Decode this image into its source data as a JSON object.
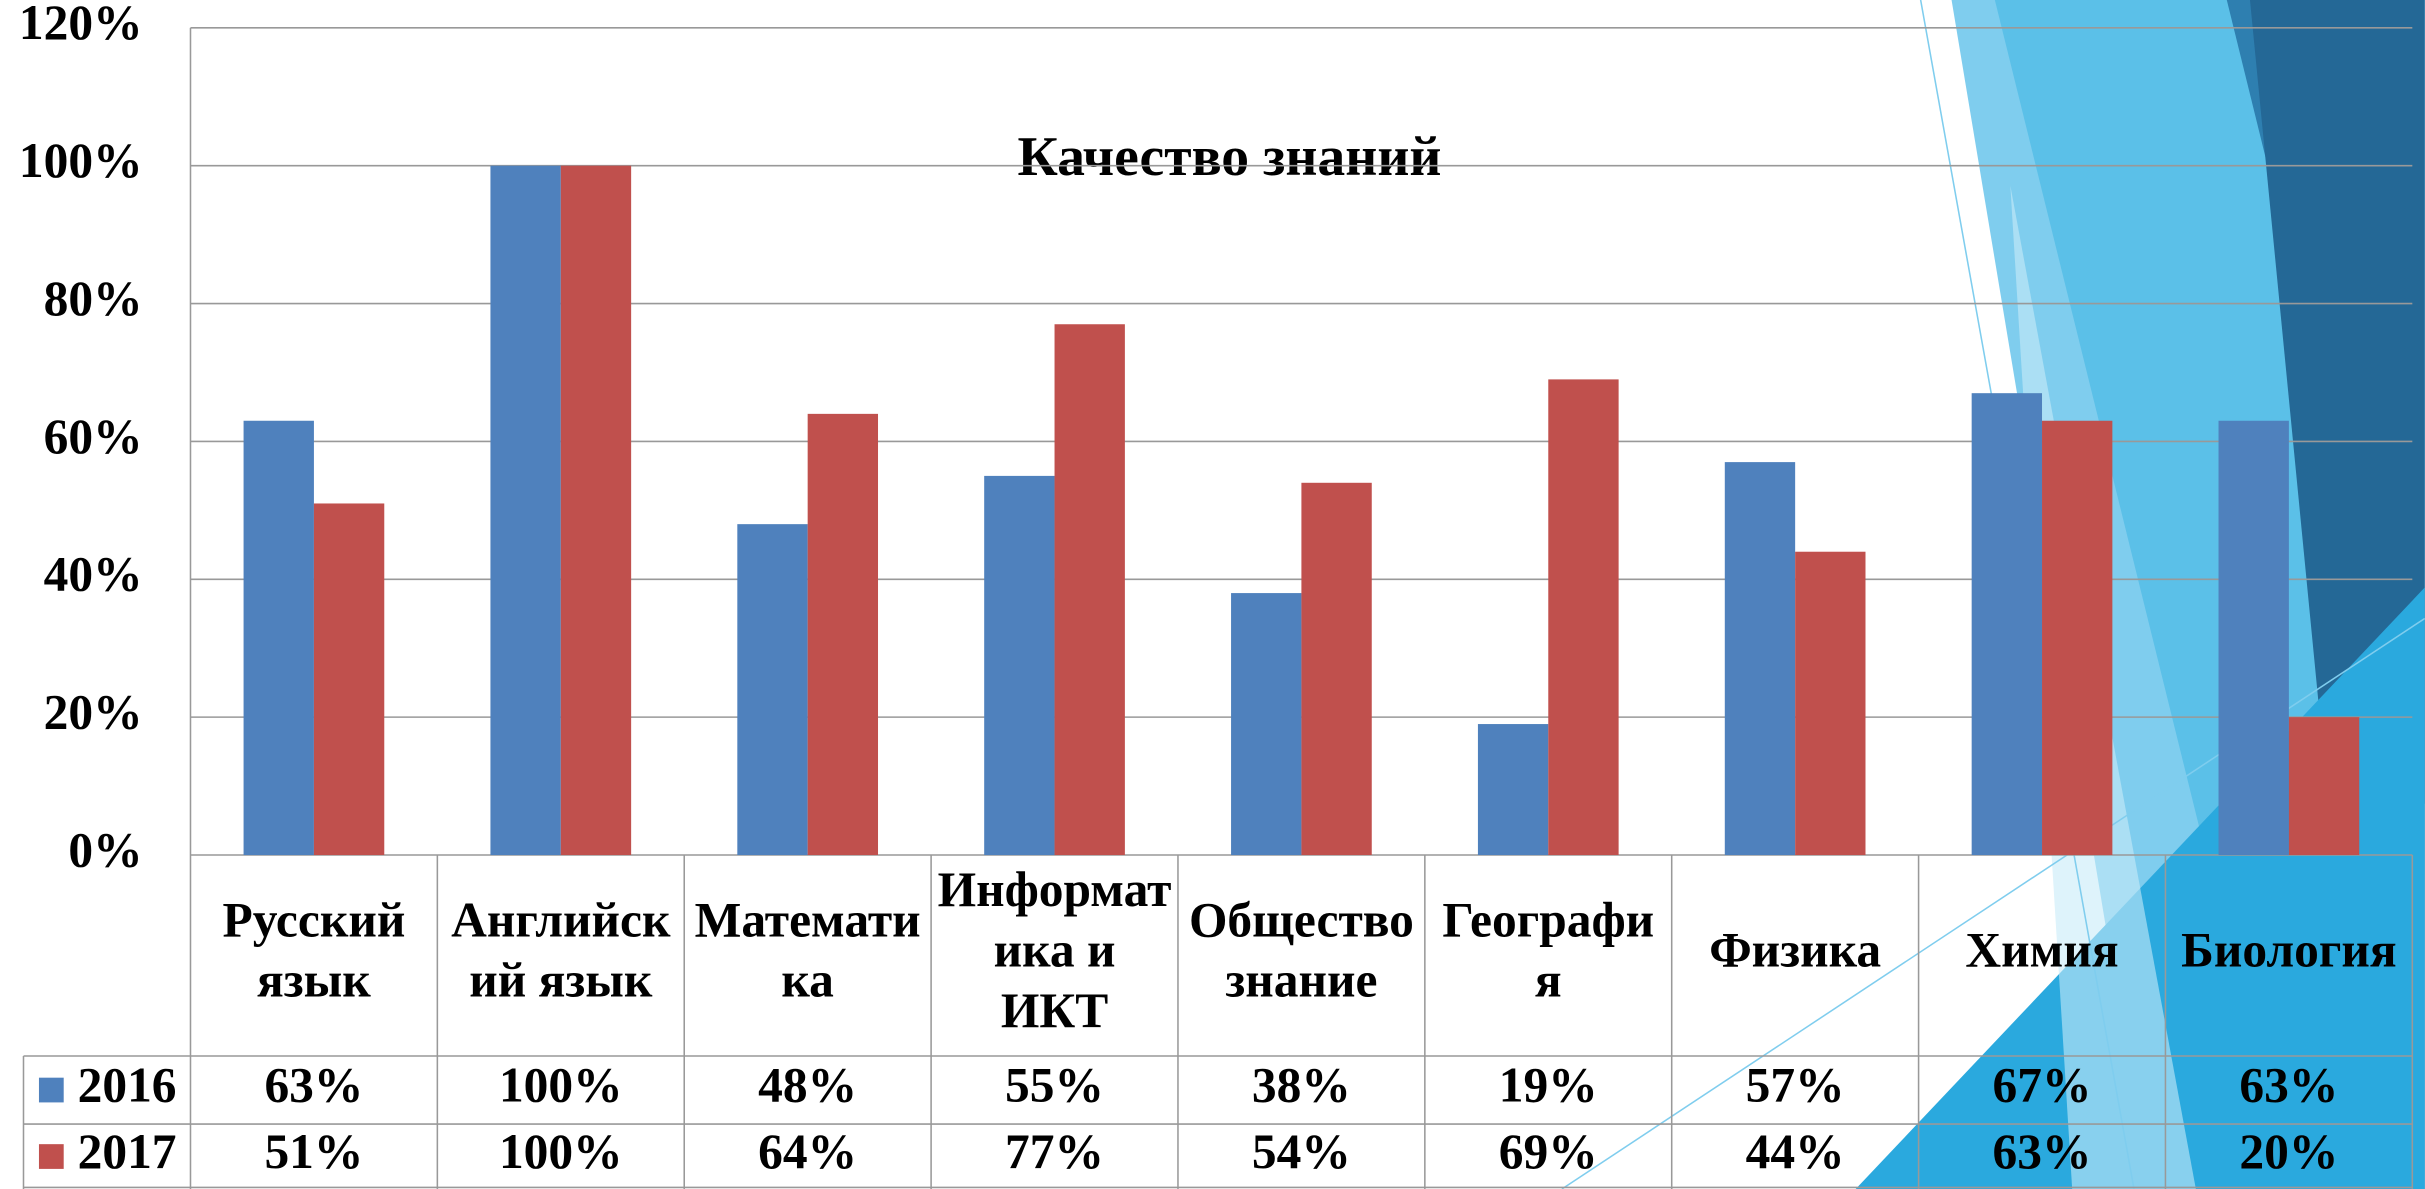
{
  "chart_data": {
    "type": "bar",
    "title": "Качество знаний",
    "categories": [
      "Русский язык",
      "Английский язык",
      "Математика",
      "Информатика и ИКТ",
      "Обществознание",
      "География",
      "Физика",
      "Химия",
      "Биология"
    ],
    "series": [
      {
        "name": "2016",
        "color": "#4f81bd",
        "values": [
          63,
          100,
          48,
          55,
          38,
          19,
          57,
          67,
          63
        ],
        "value_labels": [
          "63%",
          "100%",
          "48%",
          "55%",
          "38%",
          "19%",
          "57%",
          "67%",
          "63%"
        ]
      },
      {
        "name": "2017",
        "color": "#c0504d",
        "values": [
          51,
          100,
          64,
          77,
          54,
          69,
          44,
          63,
          20
        ],
        "value_labels": [
          "51%",
          "100%",
          "64%",
          "77%",
          "54%",
          "69%",
          "44%",
          "63%",
          "20%"
        ]
      }
    ],
    "ylim": [
      0,
      120
    ],
    "yticks": [
      {
        "value": 0,
        "label": "0%"
      },
      {
        "value": 20,
        "label": "20%"
      },
      {
        "value": 40,
        "label": "40%"
      },
      {
        "value": 60,
        "label": "60%"
      },
      {
        "value": 80,
        "label": "80%"
      },
      {
        "value": 100,
        "label": "100%"
      },
      {
        "value": 120,
        "label": "120%"
      }
    ],
    "grid": true
  }
}
